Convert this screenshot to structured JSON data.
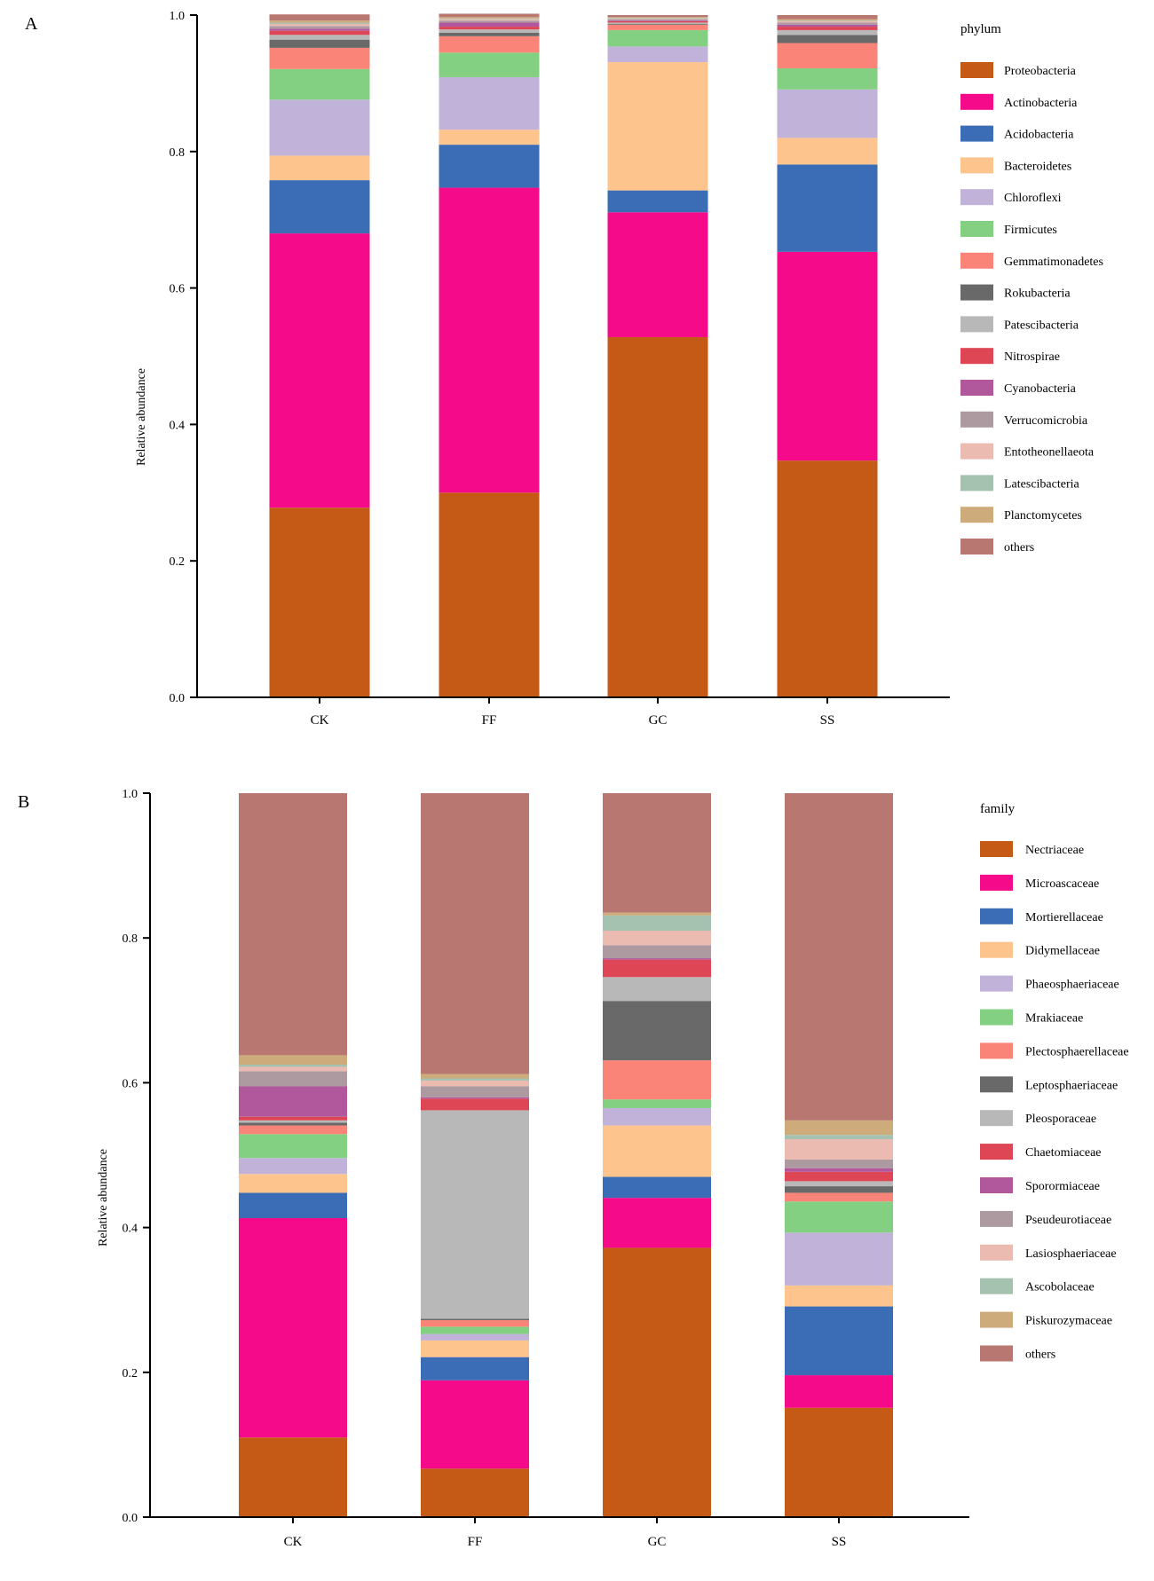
{
  "panels": [
    {
      "id": "A",
      "panel_label": "A",
      "legend_title": "phylum",
      "ylabel": "Relative abundance",
      "chart_data": {
        "type": "bar",
        "stacked": true,
        "categories": [
          "CK",
          "FF",
          "GC",
          "SS"
        ],
        "ylabel": "Relative abundance",
        "ylim": [
          0,
          1
        ],
        "yticks": [
          "0.0",
          "0.2",
          "0.4",
          "0.6",
          "0.8",
          "1.0"
        ],
        "grid": false,
        "legend_position": "right",
        "series": [
          {
            "name": "Proteobacteria",
            "color": "#C55A17",
            "values": [
              0.278,
              0.3,
              0.528,
              0.347
            ]
          },
          {
            "name": "Actinobacteria",
            "color": "#F50A8A",
            "values": [
              0.402,
              0.447,
              0.183,
              0.306
            ]
          },
          {
            "name": "Acidobacteria",
            "color": "#3A6DB5",
            "values": [
              0.078,
              0.063,
              0.032,
              0.128
            ]
          },
          {
            "name": "Bacteroidetes",
            "color": "#FEC48E",
            "values": [
              0.036,
              0.022,
              0.188,
              0.039
            ]
          },
          {
            "name": "Chloroflexi",
            "color": "#C1B2D9",
            "values": [
              0.082,
              0.077,
              0.023,
              0.071
            ]
          },
          {
            "name": "Firmicutes",
            "color": "#84D082",
            "values": [
              0.045,
              0.036,
              0.024,
              0.031
            ]
          },
          {
            "name": "Gemmatimonadetes",
            "color": "#FA8478",
            "values": [
              0.031,
              0.024,
              0.008,
              0.037
            ]
          },
          {
            "name": "Rokubacteria",
            "color": "#696969",
            "values": [
              0.012,
              0.005,
              0.001,
              0.012
            ]
          },
          {
            "name": "Patescibacteria",
            "color": "#B8B8B8",
            "values": [
              0.007,
              0.005,
              0.002,
              0.007
            ]
          },
          {
            "name": "Nitrospirae",
            "color": "#DE4555",
            "values": [
              0.006,
              0.004,
              0.002,
              0.005
            ]
          },
          {
            "name": "Cyanobacteria",
            "color": "#B0589B",
            "values": [
              0.003,
              0.006,
              0.001,
              0.003
            ]
          },
          {
            "name": "Verrucomicrobia",
            "color": "#AD9AA0",
            "values": [
              0.004,
              0.003,
              0.002,
              0.003
            ]
          },
          {
            "name": "Entotheonellaeota",
            "color": "#EBBAB0",
            "values": [
              0.003,
              0.002,
              0.001,
              0.002
            ]
          },
          {
            "name": "Latescibacteria",
            "color": "#A5C2B0",
            "values": [
              0.002,
              0.001,
              0.001,
              0.001
            ]
          },
          {
            "name": "Planctomycetes",
            "color": "#CEAB7B",
            "values": [
              0.003,
              0.002,
              0.001,
              0.002
            ]
          },
          {
            "name": "others",
            "color": "#B87871",
            "values": [
              0.009,
              0.005,
              0.003,
              0.006
            ]
          }
        ]
      }
    },
    {
      "id": "B",
      "panel_label": "B",
      "legend_title": "family",
      "ylabel": "Relative abundance",
      "chart_data": {
        "type": "bar",
        "stacked": true,
        "categories": [
          "CK",
          "FF",
          "GC",
          "SS"
        ],
        "ylabel": "Relative abundance",
        "ylim": [
          0,
          1
        ],
        "yticks": [
          "0.0",
          "0.2",
          "0.4",
          "0.6",
          "0.8",
          "1.0"
        ],
        "grid": false,
        "legend_position": "right",
        "series": [
          {
            "name": "Nectriaceae",
            "color": "#C55A17",
            "values": [
              0.11,
              0.067,
              0.372,
              0.151
            ]
          },
          {
            "name": "Microascaceae",
            "color": "#F50A8A",
            "values": [
              0.303,
              0.122,
              0.069,
              0.045
            ]
          },
          {
            "name": "Mortierellaceae",
            "color": "#3A6DB5",
            "values": [
              0.035,
              0.032,
              0.029,
              0.095
            ]
          },
          {
            "name": "Didymellaceae",
            "color": "#FEC48E",
            "values": [
              0.026,
              0.023,
              0.071,
              0.029
            ]
          },
          {
            "name": "Phaeosphaeriaceae",
            "color": "#C1B2D9",
            "values": [
              0.022,
              0.009,
              0.024,
              0.073
            ]
          },
          {
            "name": "Mrakiaceae",
            "color": "#84D082",
            "values": [
              0.033,
              0.01,
              0.012,
              0.043
            ]
          },
          {
            "name": "Plectosphaerellaceae",
            "color": "#FA8478",
            "values": [
              0.012,
              0.009,
              0.054,
              0.012
            ]
          },
          {
            "name": "Leptosphaeriaceae",
            "color": "#696969",
            "values": [
              0.004,
              0.002,
              0.082,
              0.009
            ]
          },
          {
            "name": "Pleosporaceae",
            "color": "#B8B8B8",
            "values": [
              0.003,
              0.288,
              0.033,
              0.007
            ]
          },
          {
            "name": "Chaetomiaceae",
            "color": "#DE4555",
            "values": [
              0.005,
              0.016,
              0.024,
              0.013
            ]
          },
          {
            "name": "Sporormiaceae",
            "color": "#B0589B",
            "values": [
              0.042,
              0.002,
              0.002,
              0.005
            ]
          },
          {
            "name": "Pseudeurotiaceae",
            "color": "#AD9AA0",
            "values": [
              0.021,
              0.015,
              0.018,
              0.012
            ]
          },
          {
            "name": "Lasiosphaeriaceae",
            "color": "#EBBAB0",
            "values": [
              0.006,
              0.008,
              0.02,
              0.028
            ]
          },
          {
            "name": "Ascobolaceae",
            "color": "#A5C2B0",
            "values": [
              0.003,
              0.003,
              0.021,
              0.006
            ]
          },
          {
            "name": "Piskurozymaceae",
            "color": "#CEAB7B",
            "values": [
              0.013,
              0.006,
              0.004,
              0.02
            ]
          },
          {
            "name": "others",
            "color": "#B87871",
            "values": [
              0.362,
              0.388,
              0.165,
              0.452
            ]
          }
        ]
      }
    }
  ]
}
